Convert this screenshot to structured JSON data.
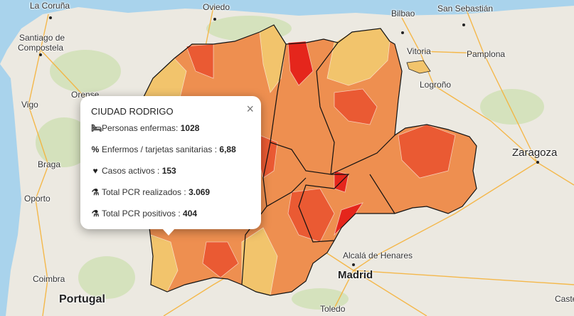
{
  "map": {
    "colors": {
      "sea": "#a9d3ec",
      "land": "#ece9e1",
      "green": "#cfe0b4",
      "low": "#f2c46c",
      "mid": "#ee8f50",
      "high": "#ea5a33",
      "max": "#e5261c",
      "border": "#111111",
      "road": "#f5b23a"
    },
    "cities": [
      {
        "name": "La Coruña"
      },
      {
        "name": "Oviedo"
      },
      {
        "name": "Bilbao"
      },
      {
        "name": "San Sebastián"
      },
      {
        "name": "Santiago de"
      },
      {
        "name": "Compostela"
      },
      {
        "name": "Vitoria"
      },
      {
        "name": "Pamplona"
      },
      {
        "name": "Logroño"
      },
      {
        "name": "Orense"
      },
      {
        "name": "Vigo"
      },
      {
        "name": "Zaragoza"
      },
      {
        "name": "Braga"
      },
      {
        "name": "Oporto"
      },
      {
        "name": "Alcalá de Henares"
      },
      {
        "name": "Madrid"
      },
      {
        "name": "Coimbra"
      },
      {
        "name": "Portugal"
      },
      {
        "name": "Toledo"
      },
      {
        "name": "Caste"
      }
    ]
  },
  "popup": {
    "title": "CIUDAD RODRIGO",
    "close_icon": "×",
    "rows": [
      {
        "icon": "bed-icon",
        "glyph": "🛏",
        "label": "Personas enfermas: ",
        "value": "1028"
      },
      {
        "icon": "percent-icon",
        "glyph": "%",
        "label": "Enfermos / tarjetas sanitarias : ",
        "value": "6,88"
      },
      {
        "icon": "heartbeat-icon",
        "glyph": "♥",
        "label": "Casos activos : ",
        "value": "153"
      },
      {
        "icon": "flask-icon",
        "glyph": "⚗",
        "label": "Total PCR realizados : ",
        "value": "3.069"
      },
      {
        "icon": "flask-icon",
        "glyph": "⚗",
        "label": "Total PCR positivos : ",
        "value": "404"
      }
    ]
  }
}
